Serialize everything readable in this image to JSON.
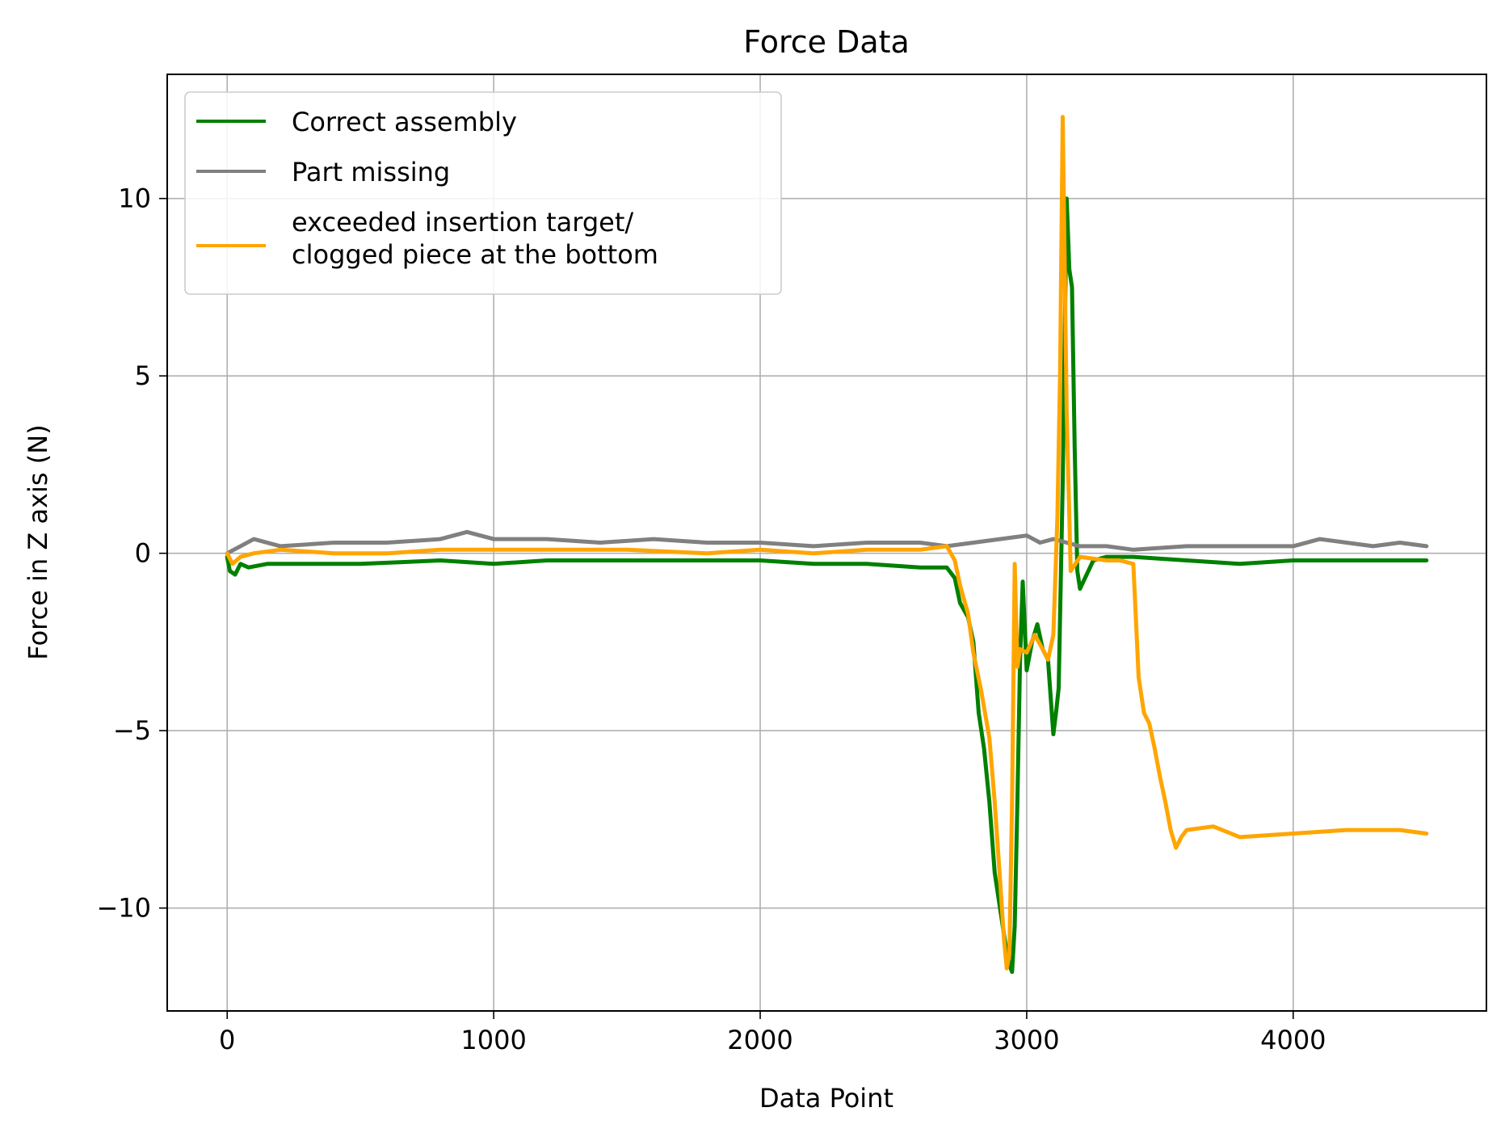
{
  "chart_data": {
    "type": "line",
    "title": "Force Data",
    "xlabel": "Data Point",
    "ylabel": "Force in Z axis (N)",
    "xlim": [
      -225,
      4725
    ],
    "ylim": [
      -12.9,
      13.5
    ],
    "xticks": [
      0,
      1000,
      2000,
      3000,
      4000
    ],
    "xtick_labels": [
      "0",
      "1000",
      "2000",
      "3000",
      "4000"
    ],
    "yticks": [
      -10,
      -5,
      0,
      5,
      10
    ],
    "ytick_labels": [
      "−10",
      "−5",
      "0",
      "5",
      "10"
    ],
    "grid": true,
    "legend_position": "upper left",
    "series": [
      {
        "name": "Correct assembly",
        "color": "#008000",
        "x": [
          0,
          10,
          30,
          50,
          80,
          150,
          300,
          500,
          800,
          1000,
          1200,
          1500,
          1800,
          2000,
          2200,
          2400,
          2600,
          2700,
          2730,
          2750,
          2780,
          2800,
          2820,
          2840,
          2860,
          2880,
          2900,
          2920,
          2935,
          2945,
          2955,
          2965,
          2975,
          2985,
          3000,
          3020,
          3040,
          3060,
          3080,
          3100,
          3110,
          3120,
          3135,
          3150,
          3160,
          3170,
          3180,
          3190,
          3200,
          3250,
          3300,
          3400,
          3600,
          3800,
          4000,
          4200,
          4400,
          4500
        ],
        "y": [
          -0.1,
          -0.5,
          -0.6,
          -0.3,
          -0.4,
          -0.3,
          -0.3,
          -0.3,
          -0.2,
          -0.3,
          -0.2,
          -0.2,
          -0.2,
          -0.2,
          -0.3,
          -0.3,
          -0.4,
          -0.4,
          -0.7,
          -1.4,
          -1.8,
          -2.5,
          -4.5,
          -5.5,
          -7.0,
          -9.0,
          -10.0,
          -11.0,
          -11.6,
          -11.8,
          -10.5,
          -7.0,
          -3.0,
          -0.8,
          -3.3,
          -2.5,
          -2.0,
          -2.7,
          -3.0,
          -5.1,
          -4.5,
          -3.8,
          2.0,
          10.0,
          8.0,
          7.5,
          3.0,
          -0.5,
          -1.0,
          -0.2,
          -0.1,
          -0.1,
          -0.2,
          -0.3,
          -0.2,
          -0.2,
          -0.2,
          -0.2
        ]
      },
      {
        "name": "Part missing",
        "color": "#808080",
        "x": [
          0,
          50,
          100,
          200,
          400,
          600,
          800,
          900,
          1000,
          1200,
          1400,
          1600,
          1800,
          2000,
          2200,
          2400,
          2600,
          2700,
          2800,
          2900,
          3000,
          3050,
          3100,
          3150,
          3200,
          3300,
          3400,
          3600,
          3800,
          4000,
          4100,
          4200,
          4300,
          4400,
          4500
        ],
        "y": [
          0.0,
          0.2,
          0.4,
          0.2,
          0.3,
          0.3,
          0.4,
          0.6,
          0.4,
          0.4,
          0.3,
          0.4,
          0.3,
          0.3,
          0.2,
          0.3,
          0.3,
          0.2,
          0.3,
          0.4,
          0.5,
          0.3,
          0.4,
          0.3,
          0.2,
          0.2,
          0.1,
          0.2,
          0.2,
          0.2,
          0.4,
          0.3,
          0.2,
          0.3,
          0.2
        ]
      },
      {
        "name": "exceeded insertion target/\nclogged piece at the bottom",
        "color": "#ffa500",
        "x": [
          0,
          20,
          50,
          100,
          200,
          400,
          600,
          800,
          1000,
          1200,
          1500,
          1800,
          2000,
          2200,
          2400,
          2600,
          2700,
          2730,
          2750,
          2780,
          2800,
          2830,
          2860,
          2880,
          2900,
          2915,
          2925,
          2935,
          2945,
          2955,
          2965,
          2975,
          3000,
          3030,
          3060,
          3080,
          3100,
          3115,
          3125,
          3135,
          3150,
          3165,
          3200,
          3300,
          3350,
          3400,
          3420,
          3440,
          3460,
          3480,
          3500,
          3520,
          3540,
          3560,
          3580,
          3600,
          3700,
          3800,
          4000,
          4200,
          4400,
          4500
        ],
        "y": [
          0.0,
          -0.3,
          -0.1,
          0.0,
          0.1,
          0.0,
          0.0,
          0.1,
          0.1,
          0.1,
          0.1,
          0.0,
          0.1,
          0.0,
          0.1,
          0.1,
          0.2,
          -0.2,
          -0.9,
          -1.7,
          -2.8,
          -3.9,
          -5.2,
          -7.0,
          -9.2,
          -10.9,
          -11.7,
          -11.3,
          -7.0,
          -0.3,
          -3.2,
          -2.7,
          -2.8,
          -2.3,
          -2.7,
          -3.0,
          -2.3,
          1.0,
          5.0,
          12.3,
          4.0,
          -0.5,
          -0.1,
          -0.2,
          -0.2,
          -0.3,
          -3.5,
          -4.5,
          -4.8,
          -5.5,
          -6.3,
          -7.0,
          -7.8,
          -8.3,
          -8.0,
          -7.8,
          -7.7,
          -8.0,
          -7.9,
          -7.8,
          -7.8,
          -7.9
        ]
      }
    ]
  }
}
